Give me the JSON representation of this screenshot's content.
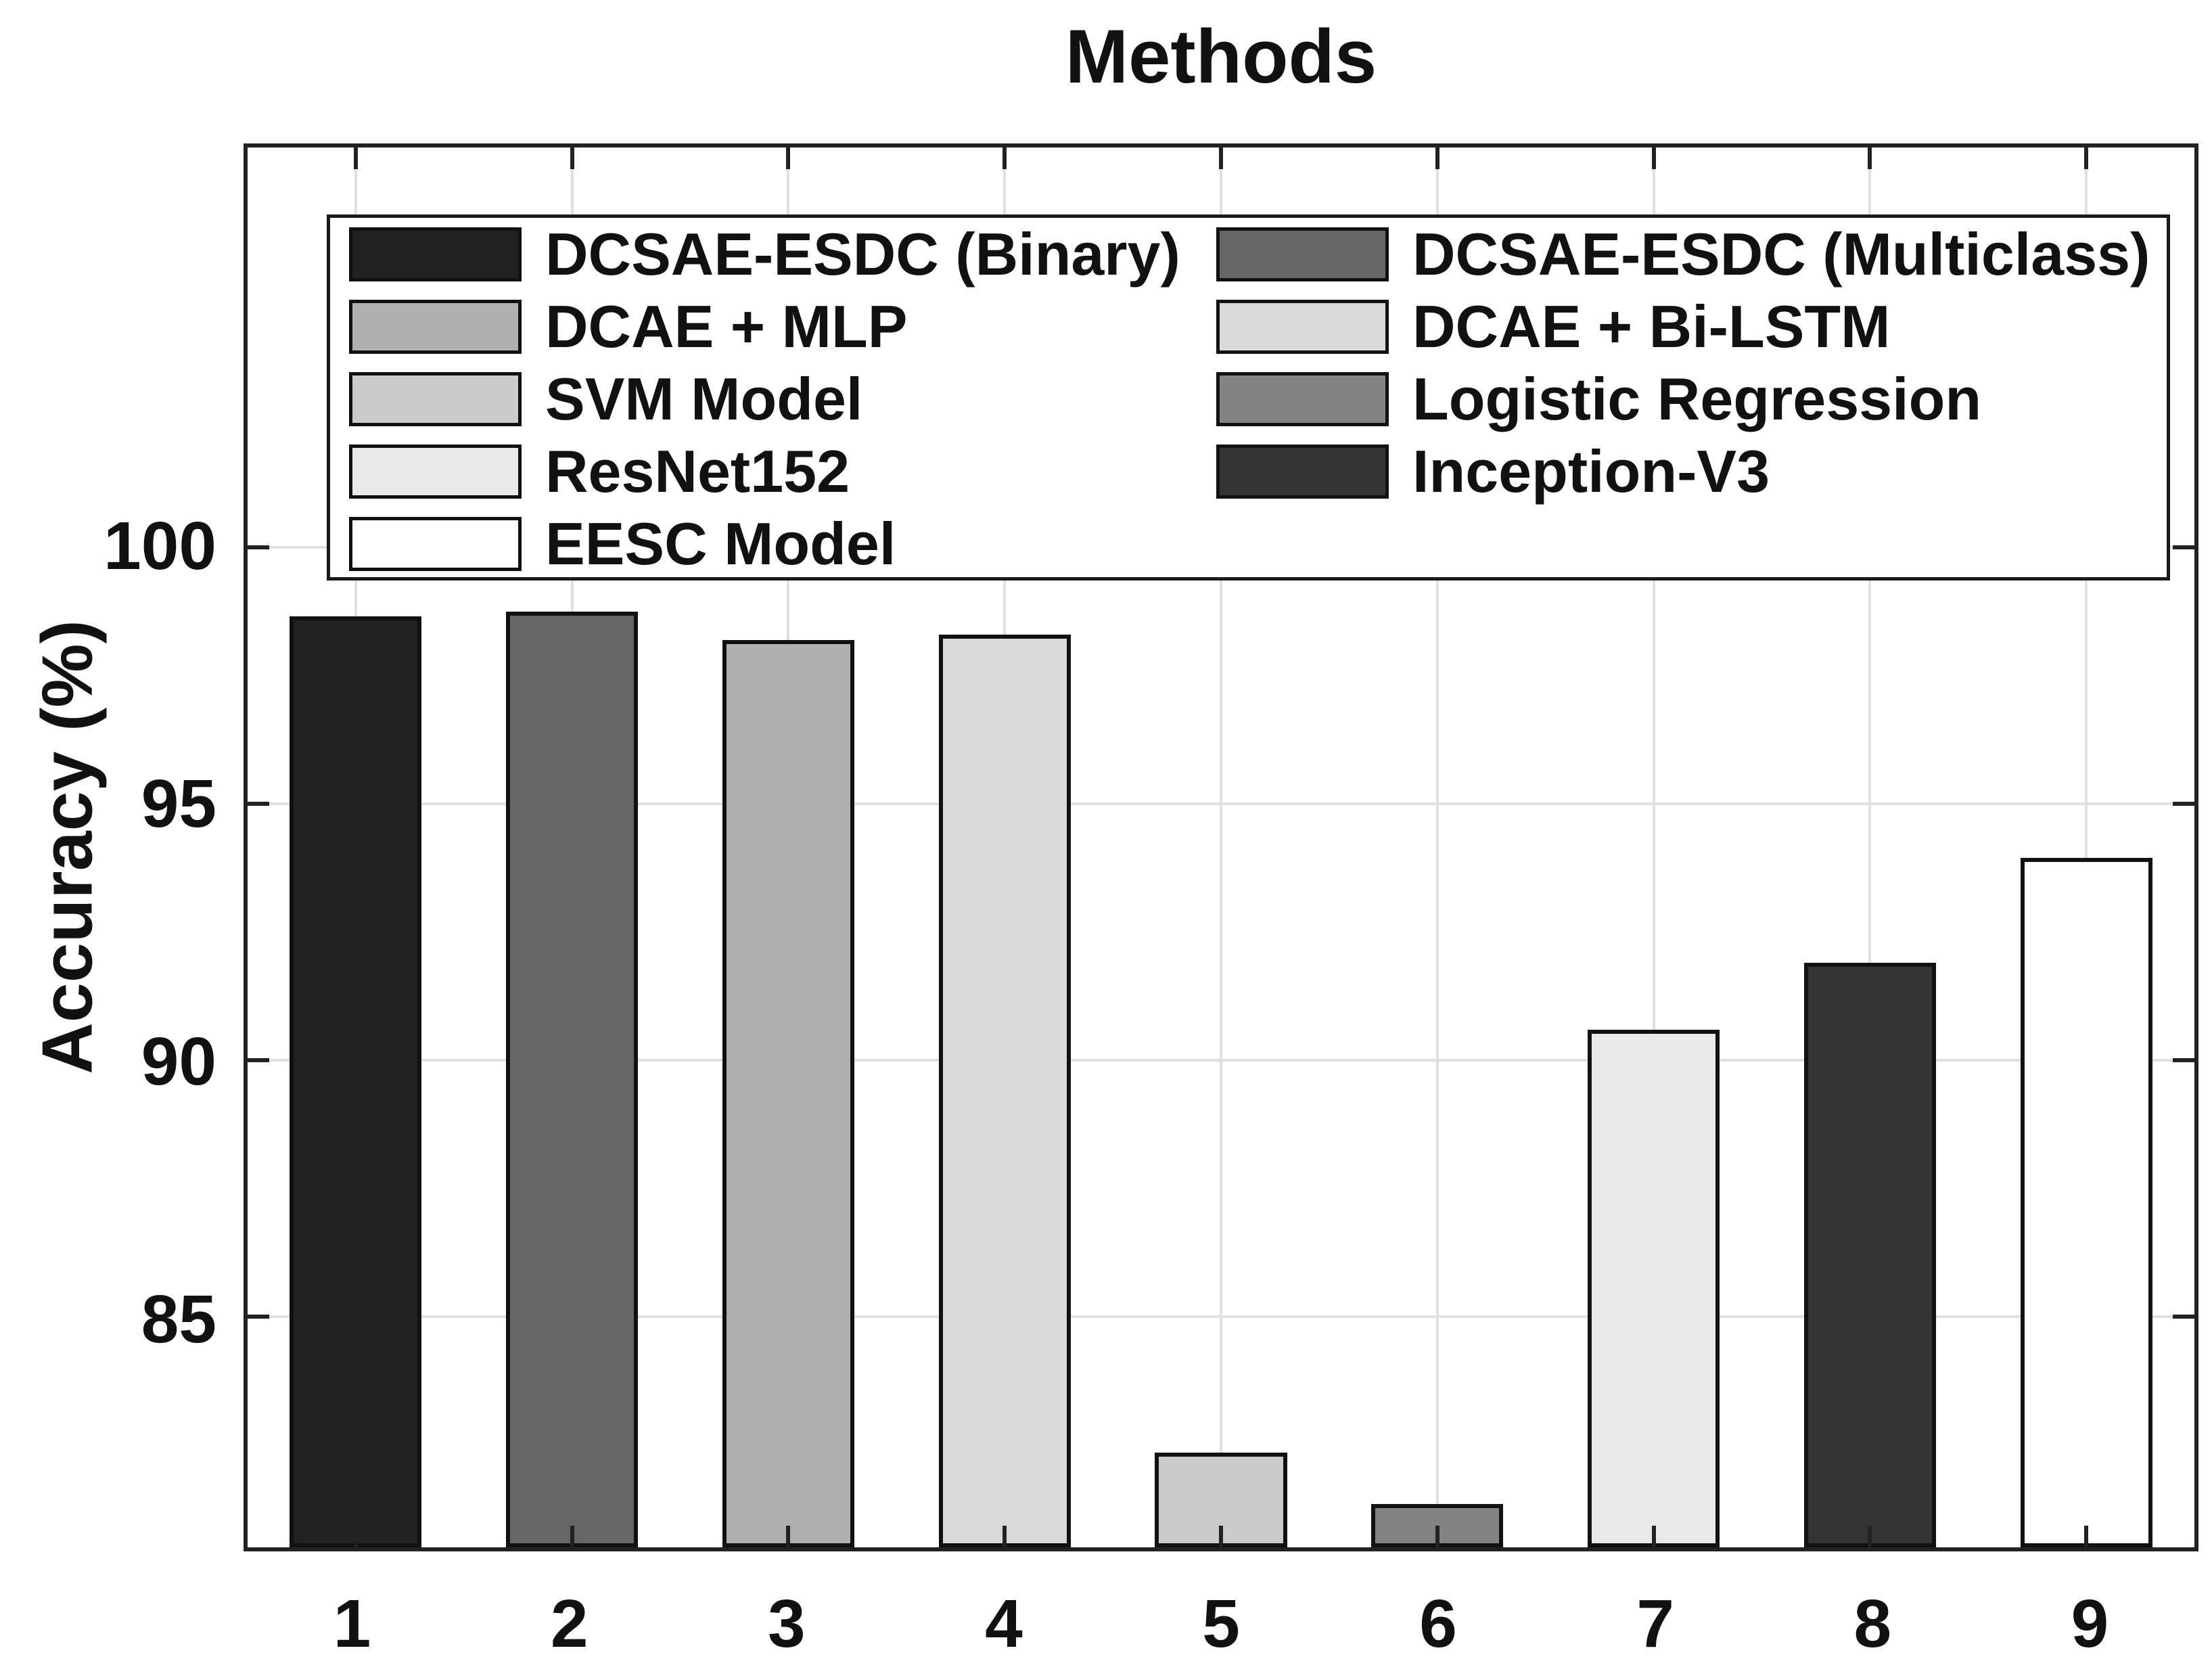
{
  "chart_data": {
    "type": "bar",
    "title": "Methods",
    "ylabel": "Accuracy (%)",
    "xlabel": "",
    "categories": [
      "1",
      "2",
      "3",
      "4",
      "5",
      "6",
      "7",
      "8",
      "9"
    ],
    "series": [
      {
        "name": "DCSAE-ESDC (Binary)",
        "value": 98.65,
        "color": "#212121"
      },
      {
        "name": "DCSAE-ESDC (Multiclass)",
        "value": 98.75,
        "color": "#666666"
      },
      {
        "name": "DCAE + MLP",
        "value": 98.2,
        "color": "#B0B0B0"
      },
      {
        "name": "DCAE + Bi-LSTM",
        "value": 98.3,
        "color": "#D9D9D9"
      },
      {
        "name": "SVM Model",
        "value": 82.35,
        "color": "#CBCBCB"
      },
      {
        "name": "Logistic Regression",
        "value": 81.35,
        "color": "#838383"
      },
      {
        "name": "ResNet152",
        "value": 90.6,
        "color": "#E9E9E9"
      },
      {
        "name": "Inception-V3",
        "value": 91.9,
        "color": "#333333"
      },
      {
        "name": "EESC Model",
        "value": 93.95,
        "color": "#FFFFFF"
      }
    ],
    "ylim": [
      80.5,
      107.8
    ],
    "yticks": [
      85,
      90,
      95,
      100
    ],
    "grid": true,
    "bar_width_fraction": 0.61,
    "legend_position": "inside-top",
    "legend_columns": [
      [
        0,
        2,
        4,
        6,
        8
      ],
      [
        1,
        3,
        5,
        7
      ]
    ],
    "colors": {
      "bar_edge": "#111111",
      "grid": "#E0E0E0",
      "axis": "#222222",
      "text": "#111111",
      "background": "#FFFFFF"
    }
  }
}
